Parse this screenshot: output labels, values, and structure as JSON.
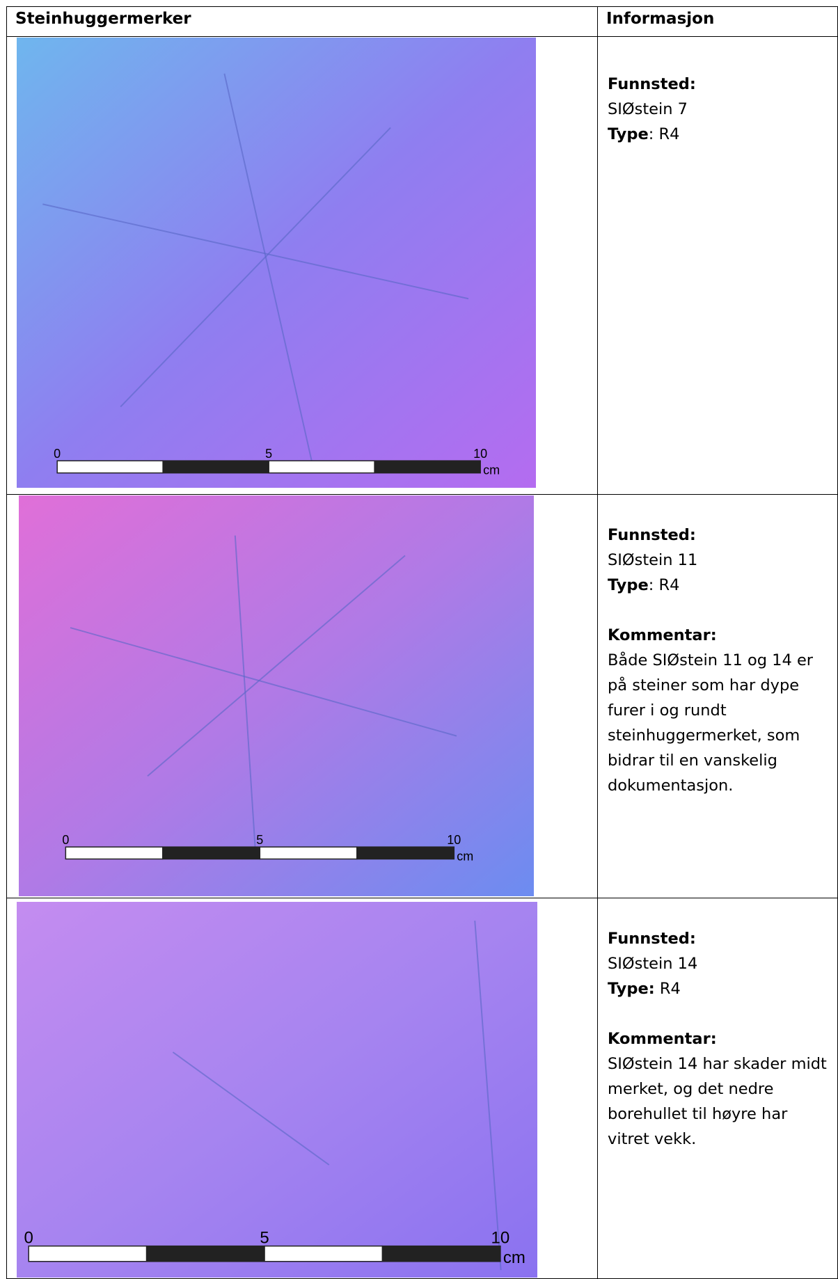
{
  "header": {
    "columns": [
      "Steinhuggermerker",
      "Informasjon"
    ]
  },
  "rows": [
    {
      "scale": {
        "labels": [
          "0",
          "5",
          "10"
        ],
        "unit": "cm"
      },
      "info": {
        "funnsted_label": "Funnsted:",
        "funnsted": "SIØstein 7",
        "type_label": "Type",
        "type": ": R4"
      }
    },
    {
      "scale": {
        "labels": [
          "0",
          "5",
          "10"
        ],
        "unit": "cm"
      },
      "info": {
        "funnsted_label": "Funnsted:",
        "funnsted": "SIØstein 11",
        "type_label": "Type",
        "type": ": R4",
        "comment_label": "Kommentar:",
        "comment": "Både SIØstein 11 og 14 er på steiner som har dype furer i og rundt steinhuggermerket, som bidrar til en vanskelig dokumentasjon."
      }
    },
    {
      "scale": {
        "labels": [
          "0",
          "5",
          "10"
        ],
        "unit": "cm"
      },
      "info": {
        "funnsted_label": "Funnsted:",
        "funnsted": "SIØstein 14",
        "type_label": "Type:",
        "type": " R4",
        "comment_label": "Kommentar:",
        "comment": "SIØstein 14 har skader midt merket, og det nedre borehullet til høyre har vitret vekk."
      }
    }
  ]
}
